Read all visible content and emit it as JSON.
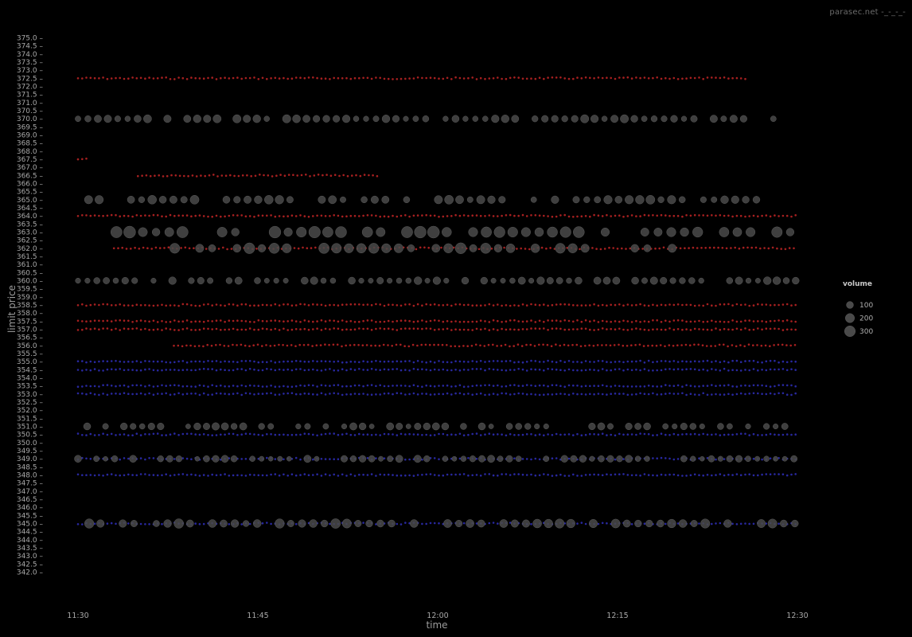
{
  "watermark": "parasec.net -_-_-_-",
  "chart_data": {
    "type": "scatter",
    "title": "",
    "xlabel": "time",
    "ylabel": "limit price",
    "x_ticks": [
      "11:30",
      "11:45",
      "12:00",
      "12:15",
      "12:30"
    ],
    "xlim": [
      "11:30",
      "12:30"
    ],
    "ylim": [
      342.0,
      375.0
    ],
    "y_tick_step": 0.5,
    "grid": false,
    "legend": {
      "title": "volume",
      "placement": "right",
      "entries": [
        {
          "label": "100",
          "volume": 100
        },
        {
          "label": "200",
          "volume": 200
        },
        {
          "label": "300",
          "volume": 300
        }
      ]
    },
    "colors": {
      "background": "#000000",
      "bid": "#2a2aa8",
      "ask": "#b02222",
      "volume_bubble": "#4a4a4a",
      "text": "#a8a8a8"
    },
    "series": [
      {
        "side": "ask",
        "color": "#b02222",
        "runs": [
          {
            "price": 372.5,
            "from": "11:30",
            "to": "12:26",
            "volume": 20
          },
          {
            "price": 367.5,
            "from": "11:30",
            "to": "11:31",
            "volume": 20
          },
          {
            "price": 366.5,
            "from": "11:35",
            "to": "11:55",
            "volume": 20
          },
          {
            "price": 364.0,
            "from": "11:30",
            "to": "12:30",
            "volume": 20
          },
          {
            "price": 362.0,
            "from": "11:33",
            "to": "12:30",
            "volume": 20
          },
          {
            "price": 358.5,
            "from": "11:30",
            "to": "12:30",
            "volume": 20
          },
          {
            "price": 357.5,
            "from": "11:30",
            "to": "12:30",
            "volume": 20
          },
          {
            "price": 357.0,
            "from": "11:30",
            "to": "12:30",
            "volume": 20
          },
          {
            "price": 356.0,
            "from": "11:38",
            "to": "12:30",
            "volume": 20
          }
        ]
      },
      {
        "side": "bid",
        "color": "#2a2aa8",
        "runs": [
          {
            "price": 355.0,
            "from": "11:30",
            "to": "12:30",
            "volume": 20
          },
          {
            "price": 354.5,
            "from": "11:30",
            "to": "12:30",
            "volume": 20
          },
          {
            "price": 353.5,
            "from": "11:30",
            "to": "12:30",
            "volume": 20
          },
          {
            "price": 353.0,
            "from": "11:30",
            "to": "12:30",
            "volume": 20
          },
          {
            "price": 350.5,
            "from": "11:30",
            "to": "12:30",
            "volume": 20
          },
          {
            "price": 349.0,
            "from": "11:30",
            "to": "12:30",
            "volume": 20
          },
          {
            "price": 348.0,
            "from": "11:30",
            "to": "12:30",
            "volume": 20
          },
          {
            "price": 345.0,
            "from": "11:30",
            "to": "12:30",
            "volume": 20
          }
        ]
      },
      {
        "side": "volume",
        "color": "#4a4a4a",
        "runs": [
          {
            "price": 370.0,
            "from": "11:30",
            "to": "12:30",
            "volume": 120
          },
          {
            "price": 365.0,
            "from": "11:30",
            "to": "12:30",
            "volume": 150
          },
          {
            "price": 363.0,
            "from": "11:31",
            "to": "12:30",
            "volume": 300
          },
          {
            "price": 362.0,
            "from": "11:36",
            "to": "12:20",
            "volume": 250
          },
          {
            "price": 360.0,
            "from": "11:30",
            "to": "12:30",
            "volume": 100
          },
          {
            "price": 351.0,
            "from": "11:30",
            "to": "12:30",
            "volume": 90
          },
          {
            "price": 349.0,
            "from": "11:30",
            "to": "12:30",
            "volume": 90
          },
          {
            "price": 345.0,
            "from": "11:30",
            "to": "12:30",
            "volume": 180
          }
        ]
      }
    ]
  }
}
